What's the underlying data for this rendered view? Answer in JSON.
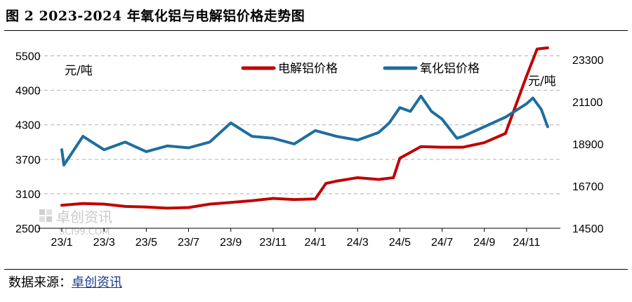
{
  "header": {
    "title": "图 2  2023-2024 年氧化铝与电解铝价格走势图"
  },
  "footer": {
    "source_label": "数据来源：",
    "source_name": "卓创资讯"
  },
  "watermark": {
    "name": "卓创资讯",
    "url": "SCI99.COM"
  },
  "colors": {
    "aluminum": "#c00000",
    "alumina": "#1f6e9e",
    "grid": "#b0b0b0"
  },
  "chart_data": {
    "type": "line",
    "left_unit": "元/吨",
    "right_unit": "元/吨",
    "legend_position": "top-center",
    "x_ticks": [
      "23/1",
      "23/3",
      "23/5",
      "23/7",
      "23/9",
      "23/11",
      "24/1",
      "24/3",
      "24/5",
      "24/7",
      "24/9",
      "24/11"
    ],
    "left_axis": {
      "min": 2500,
      "max": 5800,
      "ticks": [
        2500,
        3100,
        3700,
        4300,
        4900,
        5500
      ]
    },
    "right_axis": {
      "min": 14500,
      "max": 24400,
      "ticks": [
        14500,
        16700,
        18900,
        21100,
        23300
      ]
    },
    "grid": {
      "horizontal": true,
      "style": "dashed"
    },
    "series": [
      {
        "name": "电解铝价格",
        "axis": "left",
        "color": "#c00000",
        "points": [
          [
            "23/1",
            2900
          ],
          [
            "23/2",
            2930
          ],
          [
            "23/3",
            2920
          ],
          [
            "23/4",
            2880
          ],
          [
            "23/5",
            2870
          ],
          [
            "23/6",
            2850
          ],
          [
            "23/7",
            2860
          ],
          [
            "23/8",
            2920
          ],
          [
            "23/9",
            2950
          ],
          [
            "23/10",
            2980
          ],
          [
            "23/11",
            3020
          ],
          [
            "23/12",
            3000
          ],
          [
            "24/1",
            3010
          ],
          [
            "24/1.5",
            3280
          ],
          [
            "24/2",
            3320
          ],
          [
            "24/3",
            3380
          ],
          [
            "24/4",
            3350
          ],
          [
            "24/4.7",
            3380
          ],
          [
            "24/5",
            3720
          ],
          [
            "24/6",
            3920
          ],
          [
            "24/7",
            3910
          ],
          [
            "24/8",
            3910
          ],
          [
            "24/9",
            3990
          ],
          [
            "24/10",
            4150
          ],
          [
            "24/11",
            5150
          ],
          [
            "24/11.5",
            5620
          ],
          [
            "24/12",
            5640
          ]
        ]
      },
      {
        "name": "氧化铝价格",
        "axis": "right",
        "color": "#1f6e9e",
        "points": [
          [
            "23/1",
            18600
          ],
          [
            "23/1.1",
            17800
          ],
          [
            "23/2",
            19300
          ],
          [
            "23/3",
            18600
          ],
          [
            "23/4",
            19000
          ],
          [
            "23/5",
            18500
          ],
          [
            "23/6",
            18800
          ],
          [
            "23/7",
            18700
          ],
          [
            "23/8",
            19000
          ],
          [
            "23/9",
            20000
          ],
          [
            "23/10",
            19300
          ],
          [
            "23/11",
            19200
          ],
          [
            "23/12",
            18900
          ],
          [
            "24/1",
            19600
          ],
          [
            "24/2",
            19300
          ],
          [
            "24/3",
            19100
          ],
          [
            "24/4",
            19500
          ],
          [
            "24/4.5",
            20000
          ],
          [
            "24/5",
            20800
          ],
          [
            "24/5.5",
            20600
          ],
          [
            "24/6",
            21400
          ],
          [
            "24/6.5",
            20600
          ],
          [
            "24/7",
            20200
          ],
          [
            "24/7.7",
            19200
          ],
          [
            "24/8",
            19300
          ],
          [
            "24/9",
            19800
          ],
          [
            "24/10",
            20300
          ],
          [
            "24/11",
            21000
          ],
          [
            "24/11.3",
            21300
          ],
          [
            "24/11.7",
            20700
          ],
          [
            "24/12",
            19800
          ]
        ]
      }
    ]
  }
}
